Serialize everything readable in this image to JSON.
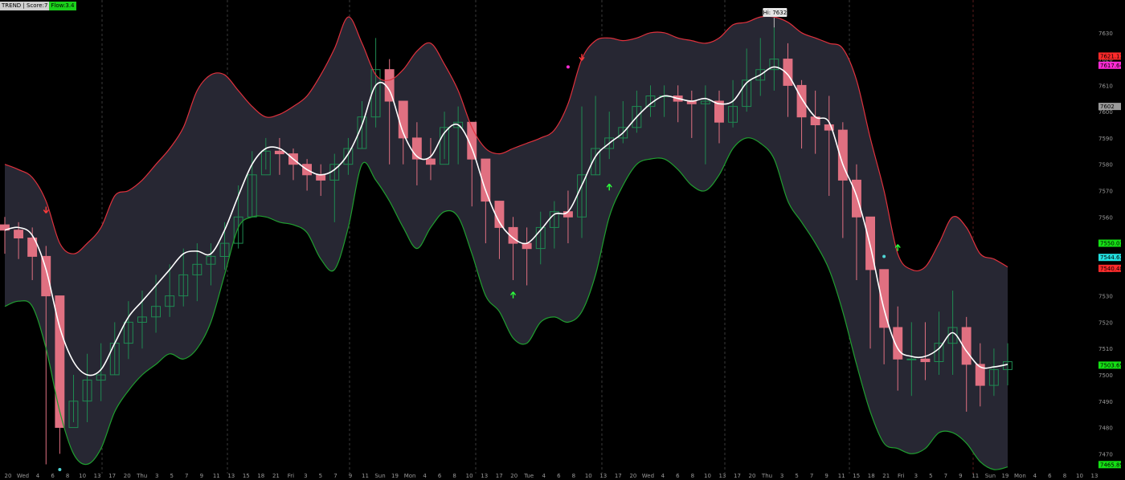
{
  "header": {
    "study_label": "TREND | Score:7",
    "flow_label": "Flow:3.4"
  },
  "chart_data": {
    "type": "line",
    "title": "",
    "xlabel": "",
    "ylabel": "",
    "ylim": [
      7464,
      7640
    ],
    "y_ticks": [
      7470,
      7480,
      7490,
      7500,
      7510,
      7520,
      7530,
      7540,
      7550,
      7560,
      7570,
      7580,
      7590,
      7600,
      7610,
      7620,
      7630
    ],
    "grid": "vertical-dashed-at-day-boundaries",
    "legend": "none",
    "x_tick_labels": [
      "20",
      "Wed",
      "4",
      "6",
      "8",
      "10",
      "13",
      "17",
      "20",
      "Thu",
      "3",
      "5",
      "7",
      "9",
      "11",
      "13",
      "15",
      "18",
      "21",
      "Fri",
      "3",
      "5",
      "7",
      "9",
      "11",
      "Sun",
      "19",
      "Mon",
      "4",
      "6",
      "8",
      "10",
      "13",
      "17",
      "20",
      "Tue",
      "4",
      "6",
      "8",
      "10",
      "13",
      "17",
      "20",
      "Wed",
      "4",
      "6",
      "8",
      "10",
      "13",
      "17",
      "20",
      "Thu",
      "3",
      "5",
      "7",
      "9",
      "11",
      "15",
      "18",
      "21",
      "Fri",
      "3",
      "5",
      "7",
      "9",
      "11",
      "Sun",
      "19",
      "Mon",
      "4",
      "6",
      "8",
      "10",
      "13"
    ],
    "series": [
      {
        "role": "midline",
        "color": "#ffffff",
        "values": [
          7555,
          7556,
          7553,
          7540,
          7518,
          7505,
          7500,
          7502,
          7512,
          7522,
          7528,
          7534,
          7540,
          7546,
          7547,
          7546,
          7555,
          7568,
          7580,
          7586,
          7586,
          7582,
          7578,
          7576,
          7578,
          7584,
          7595,
          7610,
          7608,
          7592,
          7583,
          7583,
          7592,
          7595,
          7586,
          7570,
          7558,
          7552,
          7550,
          7555,
          7561,
          7562,
          7572,
          7583,
          7588,
          7592,
          7598,
          7603,
          7606,
          7605,
          7604,
          7605,
          7603,
          7604,
          7611,
          7614,
          7617,
          7614,
          7605,
          7598,
          7596,
          7580,
          7568,
          7549,
          7525,
          7510,
          7507,
          7507,
          7510,
          7516,
          7509,
          7503,
          7503,
          7504
        ]
      },
      {
        "role": "upper-band",
        "color": "#e0313d",
        "values": [
          7580,
          7578,
          7575,
          7566,
          7550,
          7546,
          7550,
          7556,
          7568,
          7570,
          7574,
          7580,
          7586,
          7594,
          7608,
          7614,
          7614,
          7608,
          7602,
          7598,
          7599,
          7602,
          7606,
          7614,
          7624,
          7636,
          7626,
          7614,
          7612,
          7616,
          7623,
          7626,
          7618,
          7608,
          7594,
          7586,
          7584,
          7586,
          7588,
          7590,
          7593,
          7603,
          7620,
          7627,
          7628,
          7627,
          7628,
          7630,
          7630,
          7628,
          7627,
          7626,
          7628,
          7633,
          7634,
          7636,
          7636,
          7634,
          7630,
          7628,
          7626,
          7624,
          7612,
          7590,
          7570,
          7546,
          7540,
          7541,
          7550,
          7560,
          7556,
          7546,
          7544,
          7541
        ]
      },
      {
        "role": "lower-band",
        "color": "#1f9e2f",
        "values": [
          7526,
          7528,
          7526,
          7510,
          7486,
          7470,
          7466,
          7472,
          7486,
          7494,
          7500,
          7504,
          7508,
          7506,
          7510,
          7520,
          7538,
          7556,
          7560,
          7560,
          7558,
          7557,
          7554,
          7544,
          7540,
          7556,
          7580,
          7574,
          7566,
          7556,
          7548,
          7556,
          7562,
          7560,
          7546,
          7530,
          7524,
          7514,
          7512,
          7520,
          7522,
          7520,
          7524,
          7538,
          7560,
          7572,
          7580,
          7582,
          7582,
          7578,
          7572,
          7570,
          7576,
          7586,
          7590,
          7588,
          7582,
          7566,
          7558,
          7550,
          7540,
          7524,
          7504,
          7486,
          7474,
          7472,
          7470,
          7472,
          7478,
          7478,
          7474,
          7467,
          7464,
          7465
        ]
      }
    ],
    "candles": {
      "up_color": "#1f8a52",
      "down_color": "#e07081",
      "close": [
        7555,
        7552,
        7545,
        7530,
        7480,
        7490,
        7498,
        7500,
        7512,
        7520,
        7522,
        7526,
        7530,
        7538,
        7542,
        7545,
        7550,
        7560,
        7576,
        7585,
        7584,
        7580,
        7576,
        7574,
        7580,
        7586,
        7598,
        7616,
        7604,
        7590,
        7582,
        7580,
        7594,
        7596,
        7582,
        7566,
        7556,
        7550,
        7548,
        7556,
        7562,
        7560,
        7576,
        7586,
        7590,
        7594,
        7602,
        7606,
        7606,
        7604,
        7603,
        7604,
        7596,
        7602,
        7612,
        7616,
        7620,
        7610,
        7598,
        7595,
        7593,
        7574,
        7560,
        7540,
        7518,
        7506,
        7506,
        7505,
        7512,
        7518,
        7504,
        7496,
        7502,
        7505
      ],
      "high": [
        7560,
        7558,
        7556,
        7549,
        7530,
        7500,
        7508,
        7512,
        7520,
        7528,
        7532,
        7538,
        7542,
        7548,
        7550,
        7550,
        7558,
        7572,
        7585,
        7590,
        7590,
        7586,
        7582,
        7580,
        7584,
        7590,
        7604,
        7628,
        7620,
        7604,
        7596,
        7590,
        7600,
        7602,
        7592,
        7578,
        7566,
        7560,
        7556,
        7562,
        7566,
        7570,
        7602,
        7606,
        7600,
        7604,
        7608,
        7610,
        7610,
        7610,
        7608,
        7610,
        7608,
        7612,
        7624,
        7628,
        7632,
        7626,
        7612,
        7608,
        7606,
        7596,
        7580,
        7558,
        7540,
        7526,
        7520,
        7520,
        7524,
        7532,
        7522,
        7512,
        7510,
        7512
      ],
      "low": [
        7546,
        7544,
        7536,
        7466,
        7470,
        7482,
        7482,
        7490,
        7500,
        7506,
        7510,
        7516,
        7522,
        7526,
        7528,
        7534,
        7540,
        7548,
        7560,
        7578,
        7576,
        7574,
        7570,
        7568,
        7558,
        7576,
        7586,
        7594,
        7580,
        7580,
        7572,
        7574,
        7582,
        7580,
        7564,
        7550,
        7544,
        7536,
        7534,
        7542,
        7548,
        7550,
        7552,
        7576,
        7582,
        7588,
        7592,
        7598,
        7598,
        7596,
        7590,
        7580,
        7588,
        7594,
        7600,
        7606,
        7608,
        7598,
        7586,
        7584,
        7568,
        7552,
        7536,
        7510,
        7504,
        7494,
        7492,
        7498,
        7500,
        7500,
        7486,
        7488,
        7492,
        7496
      ]
    },
    "markers": [
      {
        "type": "arrow-down",
        "color": "#ff3b3b",
        "x_index": 3,
        "y": 7563
      },
      {
        "type": "dot",
        "color": "#4fd6d6",
        "x_index": 4,
        "y": 7464
      },
      {
        "type": "arrow-up",
        "color": "#2dff3c",
        "x_index": 37,
        "y": 7530
      },
      {
        "type": "dot",
        "color": "#ff2bd6",
        "x_index": 41,
        "y": 7617
      },
      {
        "type": "arrow-down",
        "color": "#ff3b3b",
        "x_index": 42,
        "y": 7621
      },
      {
        "type": "arrow-up",
        "color": "#2dff3c",
        "x_index": 44,
        "y": 7571
      },
      {
        "type": "dot",
        "color": "#4fd6d6",
        "x_index": 64,
        "y": 7545
      },
      {
        "type": "arrow-up",
        "color": "#2dff3c",
        "x_index": 65,
        "y": 7548
      }
    ],
    "hi_label": "Hi: 7632",
    "price_tags": [
      {
        "text": "7621.13",
        "value": 7621.13,
        "bg": "#ff2a2a",
        "fg": "#000000"
      },
      {
        "text": "7617.64",
        "value": 7617.64,
        "bg": "#ff2bd6",
        "fg": "#000000"
      },
      {
        "text": "7602",
        "value": 7602,
        "bg": "#9a9a9a",
        "fg": "#000000"
      },
      {
        "text": "7550.01",
        "value": 7550.01,
        "bg": "#15e015",
        "fg": "#000000"
      },
      {
        "text": "7544.63",
        "value": 7544.63,
        "bg": "#23e0e0",
        "fg": "#000000"
      },
      {
        "text": "7540.48",
        "value": 7540.48,
        "bg": "#ff2a2a",
        "fg": "#000000"
      },
      {
        "text": "7503.69",
        "value": 7503.69,
        "bg": "#15e015",
        "fg": "#000000"
      },
      {
        "text": "7465.89",
        "value": 7465.89,
        "bg": "#15e015",
        "fg": "#000000"
      }
    ]
  }
}
